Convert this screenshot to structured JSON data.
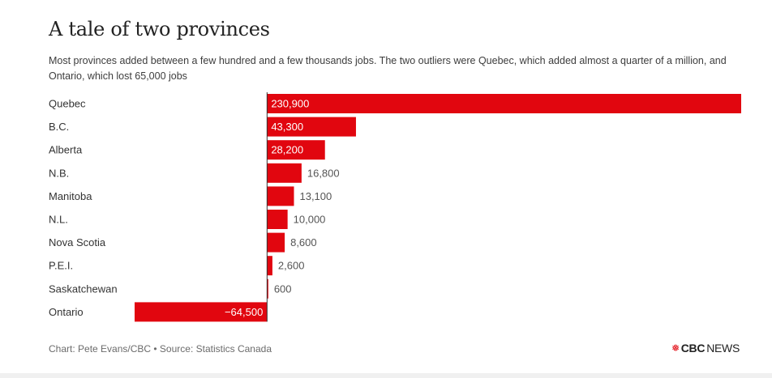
{
  "title": "A tale of two provinces",
  "subtitle": "Most provinces added between a few hundred and a few thousands jobs. The two outliers were Quebec, which added almost a quarter of a million, and Ontario, which lost 65,000 jobs",
  "footer": {
    "credit": "Chart: Pete Evans/CBC • Source: Statistics Canada",
    "logo_bold": "CBC",
    "logo_light": "NEWS",
    "logo_icon": "cbc-gem-icon"
  },
  "colors": {
    "bar": "#e1060f",
    "label_inside": "#ffffff",
    "label_outside": "#555555",
    "axis": "#333333"
  },
  "chart_data": {
    "type": "bar",
    "orientation": "horizontal",
    "categories": [
      "Quebec",
      "B.C.",
      "Alberta",
      "N.B.",
      "Manitoba",
      "N.L.",
      "Nova Scotia",
      "P.E.I.",
      "Saskatchewan",
      "Ontario"
    ],
    "values": [
      230900,
      43300,
      28200,
      16800,
      13100,
      10000,
      8600,
      2600,
      600,
      -64500
    ],
    "value_labels": [
      "230,900",
      "43,300",
      "28,200",
      "16,800",
      "13,100",
      "10,000",
      "8,600",
      "2,600",
      "600",
      "−64,500"
    ],
    "xlim": [
      -64500,
      230900
    ],
    "grid": false,
    "legend": false
  }
}
